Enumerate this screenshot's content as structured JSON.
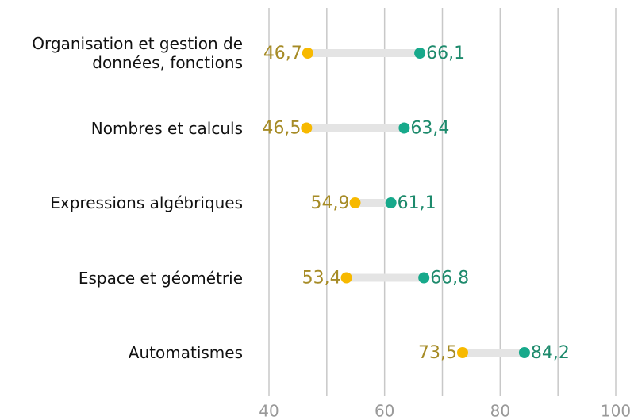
{
  "chart_data": {
    "type": "dumbbell",
    "categories": [
      "Organisation et gestion de\ndonnées, fonctions",
      "Nombres et calculs",
      "Expressions algébriques",
      "Espace et géométrie",
      "Automatismes"
    ],
    "series": [
      {
        "color": "#f7b900",
        "label_color": "#a68b26",
        "values": [
          46.7,
          46.5,
          54.9,
          53.4,
          73.5
        ],
        "value_labels": [
          "46,7",
          "46,5",
          "54,9",
          "53,4",
          "73,5"
        ]
      },
      {
        "color": "#17a98b",
        "label_color": "#1d8a6c",
        "values": [
          66.1,
          63.4,
          61.1,
          66.8,
          84.2
        ],
        "value_labels": [
          "66,1",
          "63,4",
          "61,1",
          "66,8",
          "84,2"
        ]
      }
    ],
    "xlim": [
      40,
      100
    ],
    "xticks": [
      40,
      60,
      80,
      100
    ],
    "minor_xticks": [
      50,
      70,
      90
    ],
    "grid": true
  }
}
